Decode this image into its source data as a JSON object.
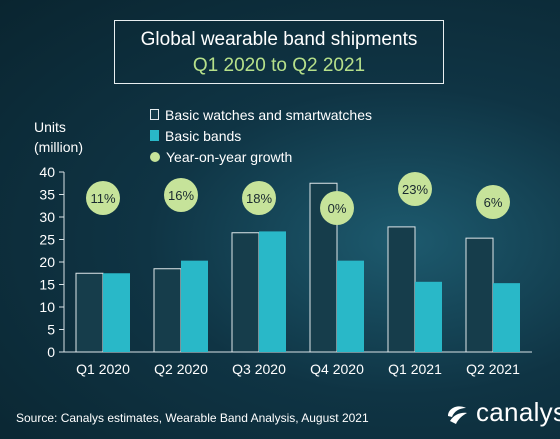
{
  "header": {
    "title": "Global wearable band shipments",
    "subtitle": "Q1 2020 to Q2 2021"
  },
  "footer": {
    "source": "Source: Canalys estimates, Wearable Band Analysis, August 2021",
    "brand": "canalys"
  },
  "colors": {
    "basic_watches": "#163d4b",
    "basic_bands": "#29b8c8",
    "yoy_growth": "#c6e39a"
  },
  "chart_data": {
    "type": "bar",
    "title": "Global wearable band shipments",
    "subtitle": "Q1 2020 to Q2 2021",
    "ylabel": "Units (million)",
    "xlabel": "",
    "ylim": [
      0,
      40
    ],
    "yticks": [
      0,
      5,
      10,
      15,
      20,
      25,
      30,
      35,
      40
    ],
    "grid": false,
    "legend_position": "top",
    "categories": [
      "Q1 2020",
      "Q2 2020",
      "Q3 2020",
      "Q4 2020",
      "Q1 2021",
      "Q2 2021"
    ],
    "series": [
      {
        "name": "Basic watches and smartwatches",
        "values": [
          17.5,
          18.5,
          26.5,
          37.5,
          27.8,
          25.3
        ]
      },
      {
        "name": "Basic bands",
        "values": [
          17.5,
          20.3,
          26.8,
          20.3,
          15.6,
          15.3
        ]
      }
    ],
    "annotations": {
      "name": "Year-on-year growth",
      "labels": [
        "11%",
        "16%",
        "18%",
        "0%",
        "23%",
        "6%"
      ]
    }
  }
}
